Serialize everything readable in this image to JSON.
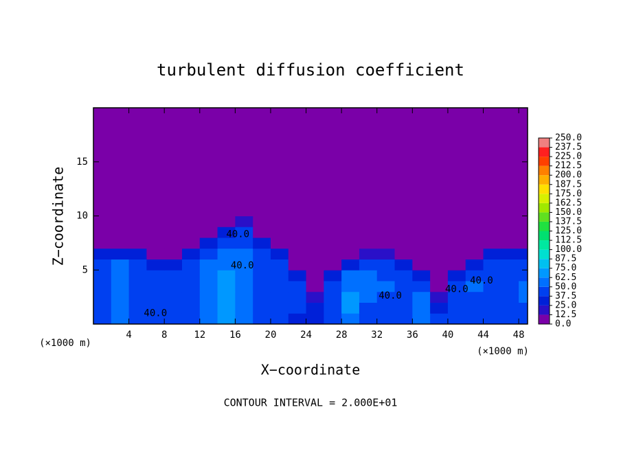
{
  "chart_data": {
    "type": "contour",
    "title": "turbulent diffusion coefficient",
    "xlabel": "X−coordinate",
    "ylabel": "Z−coordinate",
    "x_unit_label": "(×1000 m)",
    "footnote": "CONTOUR INTERVAL = 2.000E+01",
    "xlim": [
      0,
      49
    ],
    "ylim": [
      0,
      20
    ],
    "xticks": [
      4,
      8,
      12,
      16,
      20,
      24,
      28,
      32,
      36,
      40,
      44,
      48
    ],
    "yticks": [
      5,
      10,
      15
    ],
    "xbins": [
      0,
      2,
      4,
      6,
      8,
      10,
      12,
      14,
      16,
      18,
      20,
      22,
      24,
      26,
      28,
      30,
      32,
      34,
      36,
      38,
      40,
      42,
      44,
      46,
      48,
      49
    ],
    "zbins": [
      0,
      1,
      2,
      3,
      4,
      5,
      6,
      7,
      8,
      9,
      10,
      20
    ],
    "values": [
      [
        45,
        50,
        40,
        45,
        45,
        40,
        50,
        70,
        50,
        45,
        45,
        35,
        35,
        40,
        55,
        45,
        45,
        40,
        60,
        40,
        45,
        40,
        45,
        45,
        40
      ],
      [
        40,
        55,
        45,
        45,
        40,
        45,
        50,
        70,
        50,
        45,
        45,
        40,
        30,
        45,
        65,
        45,
        45,
        45,
        60,
        35,
        45,
        45,
        45,
        45,
        45
      ],
      [
        45,
        60,
        45,
        40,
        45,
        45,
        50,
        70,
        55,
        45,
        40,
        40,
        20,
        45,
        65,
        50,
        45,
        45,
        55,
        20,
        45,
        45,
        45,
        45,
        50
      ],
      [
        45,
        60,
        45,
        45,
        45,
        45,
        50,
        70,
        55,
        45,
        45,
        40,
        0,
        45,
        60,
        55,
        50,
        45,
        45,
        0,
        45,
        50,
        45,
        45,
        50
      ],
      [
        40,
        55,
        45,
        40,
        40,
        45,
        50,
        65,
        50,
        45,
        45,
        30,
        0,
        30,
        50,
        55,
        45,
        45,
        30,
        0,
        30,
        45,
        45,
        45,
        45
      ],
      [
        40,
        50,
        45,
        30,
        30,
        45,
        50,
        60,
        50,
        45,
        45,
        0,
        0,
        0,
        35,
        40,
        40,
        30,
        0,
        0,
        0,
        30,
        45,
        45,
        40
      ],
      [
        30,
        35,
        30,
        0,
        0,
        30,
        45,
        55,
        50,
        40,
        30,
        0,
        0,
        0,
        0,
        20,
        20,
        0,
        0,
        0,
        0,
        0,
        25,
        30,
        30
      ],
      [
        0,
        0,
        0,
        0,
        0,
        0,
        30,
        45,
        45,
        35,
        0,
        0,
        0,
        0,
        0,
        0,
        0,
        0,
        0,
        0,
        0,
        0,
        0,
        0,
        0
      ],
      [
        0,
        0,
        0,
        0,
        0,
        0,
        0,
        30,
        40,
        0,
        0,
        0,
        0,
        0,
        0,
        0,
        0,
        0,
        0,
        0,
        0,
        0,
        0,
        0,
        0
      ],
      [
        0,
        0,
        0,
        0,
        0,
        0,
        0,
        0,
        20,
        0,
        0,
        0,
        0,
        0,
        0,
        0,
        0,
        0,
        0,
        0,
        0,
        0,
        0,
        0,
        0
      ],
      [
        0,
        0,
        0,
        0,
        0,
        0,
        0,
        0,
        0,
        0,
        0,
        0,
        0,
        0,
        0,
        0,
        0,
        0,
        0,
        0,
        0,
        0,
        0,
        0,
        0
      ]
    ],
    "contour_labels": [
      {
        "value": 40,
        "label": "40.0",
        "x": 16.3,
        "z": 8.3
      },
      {
        "value": 40,
        "label": "40.0",
        "x": 16.8,
        "z": 5.4
      },
      {
        "value": 40,
        "label": "40.0",
        "x": 7.0,
        "z": 1.0
      },
      {
        "value": 40,
        "label": "40.0",
        "x": 33.5,
        "z": 2.6
      },
      {
        "value": 40,
        "label": "40.0",
        "x": 41.0,
        "z": 3.2
      },
      {
        "value": 40,
        "label": "40.0",
        "x": 43.8,
        "z": 4.0
      }
    ],
    "colorbar": {
      "ticks": [
        {
          "value": 0,
          "label": "0.0"
        },
        {
          "value": 12.5,
          "label": "12.5"
        },
        {
          "value": 25,
          "label": "25.0"
        },
        {
          "value": 37.5,
          "label": "37.5"
        },
        {
          "value": 50,
          "label": "50.0"
        },
        {
          "value": 62.5,
          "label": "62.5"
        },
        {
          "value": 75,
          "label": "75.0"
        },
        {
          "value": 87.5,
          "label": "87.5"
        },
        {
          "value": 100,
          "label": "100.0"
        },
        {
          "value": 112.5,
          "label": "112.5"
        },
        {
          "value": 125,
          "label": "125.0"
        },
        {
          "value": 137.5,
          "label": "137.5"
        },
        {
          "value": 150,
          "label": "150.0"
        },
        {
          "value": 162.5,
          "label": "162.5"
        },
        {
          "value": 175,
          "label": "175.0"
        },
        {
          "value": 187.5,
          "label": "187.5"
        },
        {
          "value": 200,
          "label": "200.0"
        },
        {
          "value": 212.5,
          "label": "212.5"
        },
        {
          "value": 225,
          "label": "225.0"
        },
        {
          "value": 237.5,
          "label": "237.5"
        },
        {
          "value": 250,
          "label": "250.0"
        }
      ],
      "colors": [
        "#7a00a8",
        "#2a10c8",
        "#0020d8",
        "#0040f0",
        "#0070ff",
        "#0098ff",
        "#00c0f0",
        "#00e0d0",
        "#00e8a0",
        "#00e070",
        "#20e040",
        "#60e020",
        "#a0e800",
        "#d8f000",
        "#ffe000",
        "#ffb000",
        "#ff8000",
        "#ff4000",
        "#ff2020",
        "#f08080"
      ]
    }
  }
}
